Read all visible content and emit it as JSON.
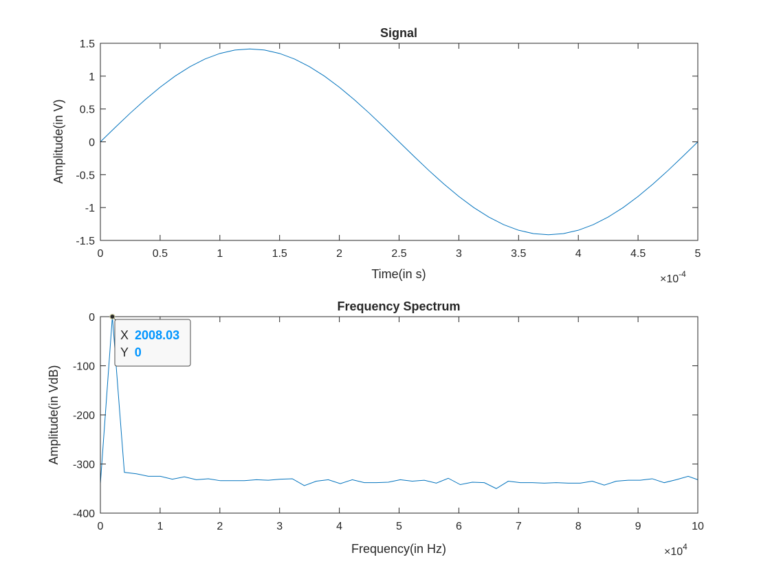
{
  "chart_data": [
    {
      "type": "line",
      "title": "Signal",
      "xlabel": "Time(in s)",
      "ylabel": "Amplitude(in V)",
      "x_exponent_label": "×10",
      "x_exponent_power": "-4",
      "x_tick_scale": 0.0001,
      "xlim": [
        0,
        0.0005
      ],
      "ylim": [
        -1.5,
        1.5
      ],
      "xticks": [
        0,
        0.5,
        1,
        1.5,
        2,
        2.5,
        3,
        3.5,
        4,
        4.5,
        5
      ],
      "xtick_labels": [
        "0",
        "0.5",
        "1",
        "1.5",
        "2",
        "2.5",
        "3",
        "3.5",
        "4",
        "4.5",
        "5"
      ],
      "yticks": [
        -1.5,
        -1,
        -0.5,
        0,
        0.5,
        1,
        1.5
      ],
      "ytick_labels": [
        "-1.5",
        "-1",
        "-0.5",
        "0",
        "0.5",
        "1",
        "1.5"
      ],
      "grid": false,
      "line_color": "#0072BD",
      "series": [
        {
          "x": [
            0,
            1.25e-05,
            2.5e-05,
            3.75e-05,
            5e-05,
            6.25e-05,
            7.5e-05,
            8.75e-05,
            0.0001,
            0.0001125,
            0.000125,
            0.0001375,
            0.00015,
            0.0001625,
            0.000175,
            0.0001875,
            0.0002,
            0.0002125,
            0.000225,
            0.0002375,
            0.00025,
            0.0002625,
            0.000275,
            0.0002875,
            0.0003,
            0.0003125,
            0.000325,
            0.0003375,
            0.00035,
            0.0003625,
            0.000375,
            0.0003875,
            0.0004,
            0.0004125,
            0.000425,
            0.0004375,
            0.00045,
            0.0004625,
            0.000475,
            0.0004875,
            0.0005
          ],
          "values": [
            0,
            0.221,
            0.437,
            0.642,
            0.831,
            1.0,
            1.144,
            1.26,
            1.345,
            1.397,
            1.414,
            1.397,
            1.345,
            1.26,
            1.144,
            1.0,
            0.831,
            0.642,
            0.437,
            0.221,
            0,
            -0.221,
            -0.437,
            -0.642,
            -0.831,
            -1.0,
            -1.144,
            -1.26,
            -1.345,
            -1.397,
            -1.414,
            -1.397,
            -1.345,
            -1.26,
            -1.144,
            -1.0,
            -0.831,
            -0.642,
            -0.437,
            -0.221,
            0
          ]
        }
      ]
    },
    {
      "type": "line",
      "title": "Frequency Spectrum",
      "xlabel": "Frequency(in Hz)",
      "ylabel": "Amplitude(in VdB)",
      "x_exponent_label": "×10",
      "x_exponent_power": "4",
      "x_tick_scale": 10000,
      "xlim": [
        0,
        100000
      ],
      "ylim": [
        -400,
        0
      ],
      "xticks": [
        0,
        1,
        2,
        3,
        4,
        5,
        6,
        7,
        8,
        9,
        10
      ],
      "xtick_labels": [
        "0",
        "1",
        "2",
        "3",
        "4",
        "5",
        "6",
        "7",
        "8",
        "9",
        "10"
      ],
      "yticks": [
        -400,
        -300,
        -200,
        -100,
        0
      ],
      "ytick_labels": [
        "-400",
        "-300",
        "-200",
        "-100",
        "0"
      ],
      "grid": false,
      "line_color": "#0072BD",
      "series": [
        {
          "x": [
            0,
            2008.03,
            4016.06,
            6024.1,
            8032.13,
            10040.16,
            12048.19,
            14056.22,
            16064.26,
            18072.29,
            20080.32,
            22088.35,
            24096.39,
            26104.42,
            28112.45,
            30120.48,
            32128.51,
            34136.55,
            36144.58,
            38152.61,
            40160.64,
            42168.67,
            44176.71,
            46184.74,
            48192.77,
            50200.8,
            52208.84,
            54216.87,
            56224.9,
            58232.93,
            60240.96,
            62249,
            64257.03,
            66265.06,
            68273.09,
            70281.12,
            72289.16,
            74297.19,
            76305.22,
            78313.25,
            80321.29,
            82329.32,
            84337.35,
            86345.38,
            88353.41,
            90361.45,
            92369.48,
            94377.51,
            96385.54,
            98393.57,
            100000
          ],
          "values": [
            -340,
            0,
            -317,
            -320,
            -325,
            -325,
            -331,
            -326,
            -332,
            -330,
            -334,
            -334,
            -334,
            -332,
            -333,
            -331,
            -330,
            -344,
            -335,
            -332,
            -340,
            -332,
            -338,
            -338,
            -337,
            -332,
            -335,
            -333,
            -339,
            -329,
            -342,
            -337,
            -338,
            -350,
            -335,
            -338,
            -338,
            -339,
            -338,
            -339,
            -339,
            -335,
            -343,
            -335,
            -333,
            -333,
            -330,
            -338,
            -332,
            -325,
            -332
          ]
        }
      ],
      "datatip": {
        "x_label": "X",
        "x_value": "2008.03",
        "y_label": "Y",
        "y_value": "0",
        "point_x": 2008.03,
        "point_y": 0,
        "value_color": "#0095FF"
      }
    }
  ]
}
